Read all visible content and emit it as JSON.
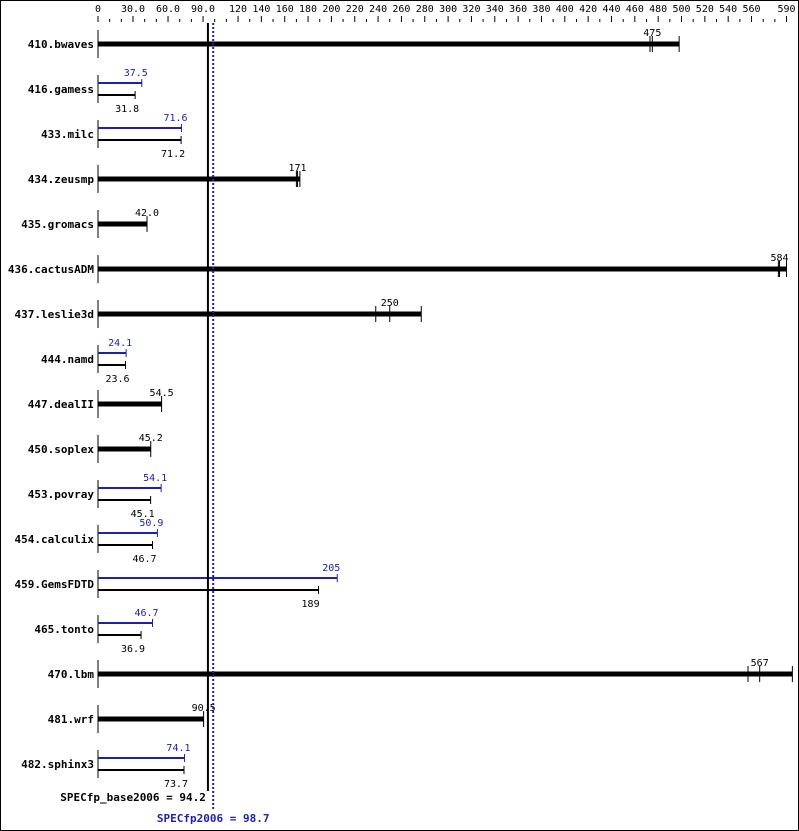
{
  "chart_data": {
    "type": "bar",
    "orientation": "horizontal",
    "xlim": [
      0,
      590
    ],
    "tick_labels": [
      "0",
      "30.0",
      "60.0",
      "90.0",
      "120",
      "140",
      "160",
      "180",
      "200",
      "220",
      "240",
      "260",
      "280",
      "300",
      "320",
      "340",
      "360",
      "380",
      "400",
      "420",
      "440",
      "460",
      "480",
      "500",
      "520",
      "540",
      "560",
      "590"
    ],
    "tick_values": [
      0,
      30,
      60,
      90,
      120,
      140,
      160,
      180,
      200,
      220,
      240,
      260,
      280,
      300,
      320,
      340,
      360,
      380,
      400,
      420,
      440,
      460,
      480,
      500,
      520,
      540,
      560,
      590
    ],
    "colors": {
      "base": "#000000",
      "peak": "#2020b0"
    },
    "benchmarks": [
      {
        "name": "410.bwaves",
        "base": 475,
        "base_label": "475",
        "base_runs": [
          473,
          475,
          498
        ]
      },
      {
        "name": "416.gamess",
        "base": 31.8,
        "base_label": "31.8",
        "peak": 37.5,
        "peak_label": "37.5"
      },
      {
        "name": "433.milc",
        "base": 71.2,
        "base_label": "71.2",
        "peak": 71.6,
        "peak_label": "71.6"
      },
      {
        "name": "434.zeusmp",
        "base": 171,
        "base_label": "171",
        "base_runs": [
          170,
          171,
          173
        ]
      },
      {
        "name": "435.gromacs",
        "base": 42.0,
        "base_label": "42.0"
      },
      {
        "name": "436.cactusADM",
        "base": 584,
        "base_label": "584",
        "base_runs": [
          583,
          584,
          590
        ]
      },
      {
        "name": "437.leslie3d",
        "base": 250,
        "base_label": "250",
        "base_runs": [
          238,
          250,
          277
        ]
      },
      {
        "name": "444.namd",
        "base": 23.6,
        "base_label": "23.6",
        "peak": 24.1,
        "peak_label": "24.1"
      },
      {
        "name": "447.dealII",
        "base": 54.5,
        "base_label": "54.5"
      },
      {
        "name": "450.soplex",
        "base": 45.2,
        "base_label": "45.2"
      },
      {
        "name": "453.povray",
        "base": 45.1,
        "base_label": "45.1",
        "peak": 54.1,
        "peak_label": "54.1"
      },
      {
        "name": "454.calculix",
        "base": 46.7,
        "base_label": "46.7",
        "peak": 50.9,
        "peak_label": "50.9"
      },
      {
        "name": "459.GemsFDTD",
        "base": 189,
        "base_label": "189",
        "peak": 205,
        "peak_label": "205"
      },
      {
        "name": "465.tonto",
        "base": 36.9,
        "base_label": "36.9",
        "peak": 46.7,
        "peak_label": "46.7"
      },
      {
        "name": "470.lbm",
        "base": 567,
        "base_label": "567",
        "base_runs": [
          557,
          567,
          595
        ]
      },
      {
        "name": "481.wrf",
        "base": 90.5,
        "base_label": "90.5"
      },
      {
        "name": "482.sphinx3",
        "base": 73.7,
        "base_label": "73.7",
        "peak": 74.1,
        "peak_label": "74.1"
      }
    ],
    "summary": {
      "base_label": "SPECfp_base2006 = 94.2",
      "base_value": 94.2,
      "peak_label": "SPECfp2006 = 98.7",
      "peak_value": 98.7
    }
  }
}
